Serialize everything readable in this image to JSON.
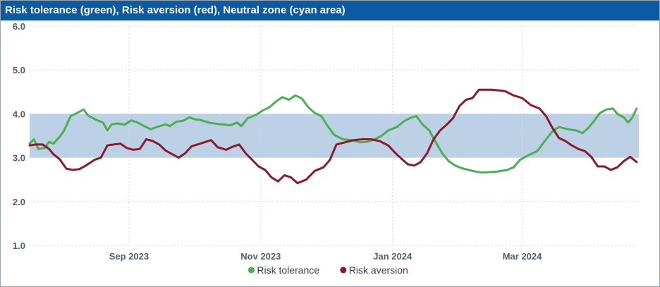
{
  "title": "Risk tolerance (green), Risk aversion (red), Neutral zone (cyan area)",
  "chart_data": {
    "type": "line",
    "title": "Risk tolerance (green), Risk aversion (red), Neutral zone (cyan area)",
    "x_range": [
      "2023-07-17",
      "2024-04-24"
    ],
    "ylim": [
      1.0,
      6.0
    ],
    "y_ticks": [
      "1.0",
      "2.0",
      "3.0",
      "4.0",
      "5.0",
      "6.0"
    ],
    "x_ticks": [
      {
        "date": "2023-09-01",
        "label": "Sep 2023"
      },
      {
        "date": "2023-11-01",
        "label": "Nov 2023"
      },
      {
        "date": "2024-01-01",
        "label": "Jan 2024"
      },
      {
        "date": "2024-03-01",
        "label": "Mar 2024"
      }
    ],
    "grid": true,
    "legend_position": "bottom-center",
    "band": {
      "name": "Neutral zone",
      "from": 3.0,
      "to": 4.0,
      "color": "#bcd0e6"
    },
    "series": [
      {
        "name": "Risk tolerance",
        "color": "#4caf50",
        "points": [
          [
            "2023-07-17",
            3.32
          ],
          [
            "2023-07-19",
            3.42
          ],
          [
            "2023-07-21",
            3.2
          ],
          [
            "2023-07-24",
            3.22
          ],
          [
            "2023-07-26",
            3.36
          ],
          [
            "2023-07-28",
            3.32
          ],
          [
            "2023-07-31",
            3.48
          ],
          [
            "2023-08-02",
            3.62
          ],
          [
            "2023-08-05",
            3.95
          ],
          [
            "2023-08-08",
            4.02
          ],
          [
            "2023-08-11",
            4.1
          ],
          [
            "2023-08-13",
            3.96
          ],
          [
            "2023-08-17",
            3.86
          ],
          [
            "2023-08-20",
            3.8
          ],
          [
            "2023-08-22",
            3.62
          ],
          [
            "2023-08-24",
            3.76
          ],
          [
            "2023-08-27",
            3.78
          ],
          [
            "2023-08-30",
            3.75
          ],
          [
            "2023-09-02",
            3.85
          ],
          [
            "2023-09-05",
            3.8
          ],
          [
            "2023-09-08",
            3.72
          ],
          [
            "2023-09-11",
            3.65
          ],
          [
            "2023-09-14",
            3.7
          ],
          [
            "2023-09-18",
            3.76
          ],
          [
            "2023-09-20",
            3.72
          ],
          [
            "2023-09-23",
            3.82
          ],
          [
            "2023-09-26",
            3.84
          ],
          [
            "2023-09-29",
            3.92
          ],
          [
            "2023-10-01",
            3.88
          ],
          [
            "2023-10-04",
            3.86
          ],
          [
            "2023-10-08",
            3.8
          ],
          [
            "2023-10-13",
            3.76
          ],
          [
            "2023-10-18",
            3.74
          ],
          [
            "2023-10-21",
            3.8
          ],
          [
            "2023-10-23",
            3.72
          ],
          [
            "2023-10-26",
            3.9
          ],
          [
            "2023-10-30",
            3.98
          ],
          [
            "2023-11-02",
            4.08
          ],
          [
            "2023-11-05",
            4.15
          ],
          [
            "2023-11-08",
            4.28
          ],
          [
            "2023-11-11",
            4.38
          ],
          [
            "2023-11-14",
            4.32
          ],
          [
            "2023-11-17",
            4.42
          ],
          [
            "2023-11-20",
            4.35
          ],
          [
            "2023-11-23",
            4.15
          ],
          [
            "2023-11-26",
            4.02
          ],
          [
            "2023-11-29",
            3.95
          ],
          [
            "2023-12-02",
            3.72
          ],
          [
            "2023-12-05",
            3.52
          ],
          [
            "2023-12-09",
            3.42
          ],
          [
            "2023-12-13",
            3.4
          ],
          [
            "2023-12-17",
            3.35
          ],
          [
            "2023-12-20",
            3.36
          ],
          [
            "2023-12-23",
            3.4
          ],
          [
            "2023-12-27",
            3.5
          ],
          [
            "2023-12-30",
            3.62
          ],
          [
            "2024-01-03",
            3.7
          ],
          [
            "2024-01-06",
            3.82
          ],
          [
            "2024-01-09",
            3.9
          ],
          [
            "2024-01-12",
            3.95
          ],
          [
            "2024-01-15",
            3.75
          ],
          [
            "2024-01-18",
            3.62
          ],
          [
            "2024-01-21",
            3.35
          ],
          [
            "2024-01-24",
            3.1
          ],
          [
            "2024-01-27",
            2.92
          ],
          [
            "2024-01-30",
            2.82
          ],
          [
            "2024-02-02",
            2.76
          ],
          [
            "2024-02-07",
            2.7
          ],
          [
            "2024-02-11",
            2.66
          ],
          [
            "2024-02-18",
            2.68
          ],
          [
            "2024-02-23",
            2.72
          ],
          [
            "2024-02-26",
            2.78
          ],
          [
            "2024-02-29",
            2.95
          ],
          [
            "2024-03-04",
            3.06
          ],
          [
            "2024-03-08",
            3.15
          ],
          [
            "2024-03-11",
            3.35
          ],
          [
            "2024-03-15",
            3.6
          ],
          [
            "2024-03-18",
            3.7
          ],
          [
            "2024-03-22",
            3.65
          ],
          [
            "2024-03-26",
            3.62
          ],
          [
            "2024-03-29",
            3.56
          ],
          [
            "2024-04-01",
            3.7
          ],
          [
            "2024-04-03",
            3.82
          ],
          [
            "2024-04-06",
            4.02
          ],
          [
            "2024-04-09",
            4.1
          ],
          [
            "2024-04-12",
            4.12
          ],
          [
            "2024-04-14",
            4.0
          ],
          [
            "2024-04-17",
            3.92
          ],
          [
            "2024-04-19",
            3.8
          ],
          [
            "2024-04-21",
            3.92
          ],
          [
            "2024-04-23",
            4.12
          ]
        ]
      },
      {
        "name": "Risk aversion",
        "color": "#8b1a2e",
        "points": [
          [
            "2023-07-17",
            3.28
          ],
          [
            "2023-07-20",
            3.3
          ],
          [
            "2023-07-23",
            3.3
          ],
          [
            "2023-07-26",
            3.2
          ],
          [
            "2023-07-28",
            3.08
          ],
          [
            "2023-07-31",
            2.96
          ],
          [
            "2023-08-03",
            2.75
          ],
          [
            "2023-08-06",
            2.72
          ],
          [
            "2023-08-09",
            2.74
          ],
          [
            "2023-08-12",
            2.82
          ],
          [
            "2023-08-16",
            2.95
          ],
          [
            "2023-08-19",
            3.0
          ],
          [
            "2023-08-22",
            3.28
          ],
          [
            "2023-08-25",
            3.3
          ],
          [
            "2023-08-28",
            3.32
          ],
          [
            "2023-08-31",
            3.22
          ],
          [
            "2023-09-03",
            3.18
          ],
          [
            "2023-09-06",
            3.2
          ],
          [
            "2023-09-09",
            3.42
          ],
          [
            "2023-09-12",
            3.38
          ],
          [
            "2023-09-15",
            3.3
          ],
          [
            "2023-09-18",
            3.16
          ],
          [
            "2023-09-21",
            3.08
          ],
          [
            "2023-09-24",
            3.0
          ],
          [
            "2023-09-27",
            3.1
          ],
          [
            "2023-09-30",
            3.26
          ],
          [
            "2023-10-04",
            3.32
          ],
          [
            "2023-10-09",
            3.4
          ],
          [
            "2023-10-12",
            3.24
          ],
          [
            "2023-10-16",
            3.18
          ],
          [
            "2023-10-19",
            3.25
          ],
          [
            "2023-10-22",
            3.3
          ],
          [
            "2023-10-25",
            3.1
          ],
          [
            "2023-10-28",
            2.95
          ],
          [
            "2023-10-31",
            2.8
          ],
          [
            "2023-11-03",
            2.72
          ],
          [
            "2023-11-06",
            2.55
          ],
          [
            "2023-11-09",
            2.46
          ],
          [
            "2023-11-12",
            2.6
          ],
          [
            "2023-11-15",
            2.55
          ],
          [
            "2023-11-18",
            2.42
          ],
          [
            "2023-11-22",
            2.5
          ],
          [
            "2023-11-26",
            2.7
          ],
          [
            "2023-11-30",
            2.78
          ],
          [
            "2023-12-03",
            2.95
          ],
          [
            "2023-12-06",
            3.3
          ],
          [
            "2023-12-10",
            3.35
          ],
          [
            "2023-12-14",
            3.4
          ],
          [
            "2023-12-18",
            3.42
          ],
          [
            "2023-12-22",
            3.42
          ],
          [
            "2023-12-26",
            3.38
          ],
          [
            "2023-12-30",
            3.28
          ],
          [
            "2024-01-02",
            3.12
          ],
          [
            "2024-01-05",
            2.98
          ],
          [
            "2024-01-08",
            2.85
          ],
          [
            "2024-01-11",
            2.82
          ],
          [
            "2024-01-14",
            2.9
          ],
          [
            "2024-01-17",
            3.1
          ],
          [
            "2024-01-20",
            3.42
          ],
          [
            "2024-01-23",
            3.62
          ],
          [
            "2024-01-26",
            3.75
          ],
          [
            "2024-01-29",
            3.9
          ],
          [
            "2024-02-01",
            4.18
          ],
          [
            "2024-02-04",
            4.32
          ],
          [
            "2024-02-07",
            4.36
          ],
          [
            "2024-02-10",
            4.55
          ],
          [
            "2024-02-16",
            4.55
          ],
          [
            "2024-02-22",
            4.52
          ],
          [
            "2024-02-26",
            4.42
          ],
          [
            "2024-03-01",
            4.36
          ],
          [
            "2024-03-05",
            4.2
          ],
          [
            "2024-03-09",
            4.12
          ],
          [
            "2024-03-12",
            3.95
          ],
          [
            "2024-03-15",
            3.68
          ],
          [
            "2024-03-18",
            3.45
          ],
          [
            "2024-03-21",
            3.38
          ],
          [
            "2024-03-24",
            3.28
          ],
          [
            "2024-03-27",
            3.2
          ],
          [
            "2024-03-30",
            3.15
          ],
          [
            "2024-04-02",
            3.02
          ],
          [
            "2024-04-05",
            2.8
          ],
          [
            "2024-04-08",
            2.8
          ],
          [
            "2024-04-11",
            2.72
          ],
          [
            "2024-04-14",
            2.78
          ],
          [
            "2024-04-17",
            2.92
          ],
          [
            "2024-04-20",
            3.02
          ],
          [
            "2024-04-23",
            2.9
          ]
        ]
      }
    ]
  }
}
